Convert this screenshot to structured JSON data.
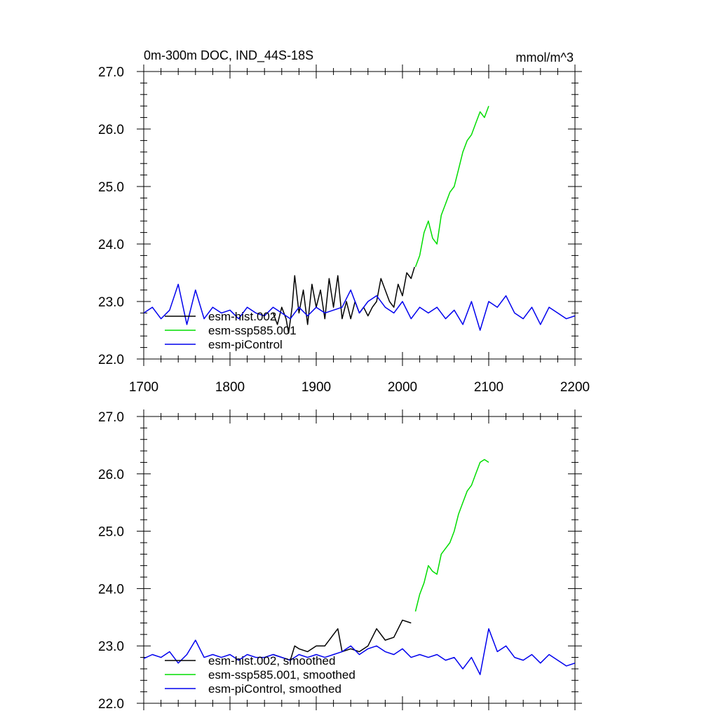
{
  "chart_data": [
    {
      "type": "line",
      "title": "0m-300m DOC, IND_44S-18S",
      "units": "mmol/m^3",
      "xlim": [
        1700,
        2200
      ],
      "ylim": [
        22.0,
        27.0
      ],
      "xticks": [
        "1700",
        "1800",
        "1900",
        "2000",
        "2100",
        "2200"
      ],
      "yticks": [
        "22.0",
        "23.0",
        "24.0",
        "25.0",
        "26.0",
        "27.0"
      ],
      "legend_position": "bottom-left",
      "series": [
        {
          "name": "esm-hist.002",
          "color": "#000000",
          "x": [
            1850,
            1855,
            1860,
            1865,
            1868,
            1872,
            1875,
            1880,
            1885,
            1890,
            1895,
            1900,
            1905,
            1910,
            1915,
            1920,
            1925,
            1930,
            1935,
            1940,
            1945,
            1950,
            1955,
            1960,
            1965,
            1970,
            1975,
            1980,
            1985,
            1990,
            1995,
            2000,
            2005,
            2010,
            2014
          ],
          "y": [
            22.8,
            22.6,
            22.9,
            22.7,
            22.45,
            22.9,
            23.45,
            22.8,
            23.2,
            22.6,
            23.3,
            22.9,
            23.2,
            22.7,
            23.4,
            22.9,
            23.45,
            22.7,
            23.0,
            22.7,
            23.0,
            22.8,
            22.9,
            22.75,
            22.9,
            23.0,
            23.4,
            23.2,
            23.0,
            22.9,
            23.3,
            23.1,
            23.5,
            23.4,
            23.6
          ]
        },
        {
          "name": "esm-ssp585.001",
          "color": "#00dd00",
          "x": [
            2015,
            2020,
            2025,
            2030,
            2035,
            2040,
            2045,
            2050,
            2055,
            2060,
            2065,
            2070,
            2075,
            2080,
            2085,
            2090,
            2095,
            2100
          ],
          "y": [
            23.6,
            23.8,
            24.2,
            24.4,
            24.1,
            24.0,
            24.5,
            24.7,
            24.9,
            25.0,
            25.3,
            25.6,
            25.8,
            25.9,
            26.1,
            26.3,
            26.2,
            26.4
          ]
        },
        {
          "name": "esm-piControl",
          "color": "#0000ee",
          "x": [
            1700,
            1710,
            1720,
            1730,
            1740,
            1750,
            1760,
            1770,
            1780,
            1790,
            1800,
            1810,
            1820,
            1830,
            1840,
            1850,
            1860,
            1870,
            1880,
            1890,
            1900,
            1910,
            1920,
            1930,
            1940,
            1950,
            1960,
            1970,
            1980,
            1990,
            2000,
            2010,
            2020,
            2030,
            2040,
            2050,
            2060,
            2070,
            2080,
            2090,
            2100,
            2110,
            2120,
            2130,
            2140,
            2150,
            2160,
            2170,
            2180,
            2190,
            2200
          ],
          "y": [
            22.8,
            22.9,
            22.7,
            22.85,
            23.3,
            22.6,
            23.2,
            22.7,
            22.9,
            22.8,
            22.85,
            22.7,
            22.9,
            22.8,
            22.75,
            22.9,
            22.8,
            22.7,
            22.9,
            22.75,
            22.9,
            22.8,
            22.85,
            22.9,
            23.2,
            22.8,
            23.0,
            23.1,
            22.9,
            22.8,
            23.0,
            22.7,
            22.9,
            22.8,
            22.9,
            22.7,
            22.85,
            22.6,
            23.0,
            22.5,
            23.0,
            22.9,
            23.1,
            22.8,
            22.7,
            22.9,
            22.6,
            22.9,
            22.8,
            22.7,
            22.75
          ]
        }
      ]
    },
    {
      "type": "line",
      "xlim": [
        1700,
        2200
      ],
      "ylim": [
        22.0,
        27.0
      ],
      "yticks": [
        "22.0",
        "23.0",
        "24.0",
        "25.0",
        "26.0",
        "27.0"
      ],
      "legend_position": "bottom-left",
      "series": [
        {
          "name": "esm-hist.002, smoothed",
          "color": "#000000",
          "x": [
            1850,
            1860,
            1870,
            1875,
            1880,
            1890,
            1900,
            1910,
            1920,
            1925,
            1930,
            1940,
            1950,
            1960,
            1970,
            1980,
            1990,
            2000,
            2010
          ],
          "y": [
            22.85,
            22.8,
            22.75,
            23.0,
            22.95,
            22.9,
            23.0,
            23.0,
            23.2,
            23.3,
            22.9,
            22.95,
            22.9,
            23.0,
            23.3,
            23.1,
            23.15,
            23.45,
            23.4
          ]
        },
        {
          "name": "esm-ssp585.001, smoothed",
          "color": "#00dd00",
          "x": [
            2015,
            2020,
            2025,
            2030,
            2035,
            2040,
            2045,
            2050,
            2055,
            2060,
            2065,
            2070,
            2075,
            2080,
            2085,
            2090,
            2095,
            2100
          ],
          "y": [
            23.6,
            23.9,
            24.1,
            24.4,
            24.3,
            24.25,
            24.6,
            24.7,
            24.8,
            25.0,
            25.3,
            25.5,
            25.7,
            25.8,
            26.0,
            26.2,
            26.25,
            26.2
          ]
        },
        {
          "name": "esm-piControl, smoothed",
          "color": "#0000ee",
          "x": [
            1700,
            1710,
            1720,
            1730,
            1740,
            1750,
            1760,
            1770,
            1780,
            1790,
            1800,
            1810,
            1820,
            1830,
            1840,
            1850,
            1860,
            1870,
            1880,
            1890,
            1900,
            1910,
            1920,
            1930,
            1940,
            1950,
            1960,
            1970,
            1980,
            1990,
            2000,
            2010,
            2020,
            2030,
            2040,
            2050,
            2060,
            2070,
            2080,
            2090,
            2100,
            2110,
            2120,
            2130,
            2140,
            2150,
            2160,
            2170,
            2180,
            2190,
            2200
          ],
          "y": [
            22.78,
            22.85,
            22.8,
            22.9,
            22.7,
            22.85,
            23.1,
            22.8,
            22.85,
            22.8,
            22.85,
            22.75,
            22.85,
            22.8,
            22.8,
            22.85,
            22.8,
            22.75,
            22.85,
            22.8,
            22.85,
            22.8,
            22.85,
            22.9,
            23.0,
            22.85,
            22.95,
            23.0,
            22.9,
            22.85,
            22.95,
            22.8,
            22.85,
            22.8,
            22.85,
            22.75,
            22.8,
            22.6,
            22.8,
            22.5,
            23.3,
            22.9,
            23.0,
            22.8,
            22.75,
            22.85,
            22.7,
            22.85,
            22.75,
            22.65,
            22.7
          ]
        }
      ]
    }
  ]
}
